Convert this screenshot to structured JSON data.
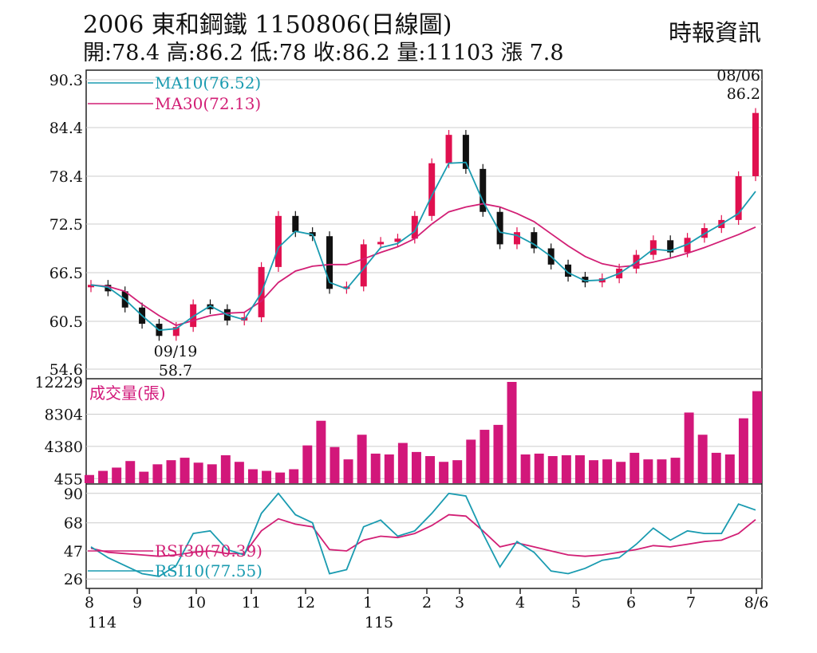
{
  "header": {
    "title": "2006 東和鋼鐵 1150806(日線圖)",
    "ohlc": "開:78.4 高:86.2 低:78 收:86.2 量:11103 漲 7.8",
    "source": "時報資訊"
  },
  "colors": {
    "up": "#e0104f",
    "down": "#111111",
    "ma10": "#1a9bb0",
    "ma30": "#d21f75",
    "volume": "#d2177a",
    "rsi10": "#1a9bb0",
    "rsi30": "#d21f75",
    "grid": "#cccccc"
  },
  "chart_data": [
    {
      "type": "candlestick",
      "title": "2006 東和鋼鐵 1150806(日線圖)",
      "y_ticks": [
        "90.3",
        "84.4",
        "78.4",
        "72.5",
        "66.5",
        "60.5",
        "54.6"
      ],
      "ylim": [
        54.6,
        90.3
      ],
      "x_ticks": [
        "8",
        "9",
        "10",
        "11",
        "12",
        "1",
        "2",
        "3",
        "4",
        "5",
        "6",
        "7",
        "8/6"
      ],
      "x_sub_ticks": [
        "114",
        "115"
      ],
      "legend": [
        {
          "label": "MA10(76.52)",
          "color": "#1a9bb0"
        },
        {
          "label": "MA30(72.13)",
          "color": "#d21f75"
        }
      ],
      "annotations": [
        {
          "label": "08/06",
          "value": "86.2",
          "position": "top-right"
        },
        {
          "label": "09/19",
          "value": "58.7",
          "position": "low"
        }
      ],
      "series": [
        {
          "name": "price",
          "x": [
            "08/01",
            "08/15",
            "08/29",
            "09/12",
            "09/19",
            "10/01",
            "10/15",
            "10/29",
            "11/12",
            "11/26",
            "12/05",
            "12/12",
            "12/19",
            "12/26",
            "01/05",
            "01/15",
            "01/26",
            "02/06",
            "02/16",
            "02/27",
            "03/06",
            "03/10",
            "03/16",
            "03/23",
            "03/30",
            "04/08",
            "04/17",
            "04/24",
            "05/06",
            "05/15",
            "05/26",
            "06/05",
            "06/15",
            "06/24",
            "07/02",
            "07/10",
            "07/20",
            "07/29",
            "08/04",
            "08/06"
          ],
          "values": [
            65.0,
            64.2,
            62.2,
            60.2,
            58.7,
            59.8,
            62.6,
            62.0,
            60.6,
            61.0,
            67.2,
            73.5,
            71.5,
            71.0,
            64.5,
            64.8,
            70.0,
            70.3,
            70.7,
            73.5,
            80.0,
            83.5,
            79.3,
            74.0,
            70.0,
            71.5,
            69.5,
            67.5,
            66.0,
            65.3,
            65.8,
            67.0,
            68.7,
            70.5,
            69.0,
            70.8,
            72.0,
            73.0,
            78.4,
            86.2
          ]
        },
        {
          "name": "MA10",
          "x": [
            "08/01",
            "08/15",
            "08/29",
            "09/12",
            "09/19",
            "10/01",
            "10/15",
            "10/29",
            "11/12",
            "11/26",
            "12/05",
            "12/12",
            "12/19",
            "12/26",
            "01/05",
            "01/15",
            "01/26",
            "02/06",
            "02/16",
            "02/27",
            "03/06",
            "03/10",
            "03/16",
            "03/23",
            "03/30",
            "04/08",
            "04/17",
            "04/24",
            "05/06",
            "05/15",
            "05/26",
            "06/05",
            "06/15",
            "06/24",
            "07/02",
            "07/10",
            "07/20",
            "07/29",
            "08/04",
            "08/06"
          ],
          "values": [
            65.0,
            64.7,
            63.2,
            61.2,
            59.4,
            59.6,
            61.1,
            62.4,
            61.3,
            60.7,
            64.0,
            69.6,
            71.6,
            71.2,
            65.3,
            64.5,
            67.0,
            69.6,
            70.1,
            71.6,
            76.0,
            80.0,
            80.1,
            75.3,
            71.5,
            71.1,
            70.0,
            68.5,
            66.5,
            65.5,
            65.6,
            66.4,
            67.8,
            69.4,
            69.2,
            70.0,
            71.3,
            72.5,
            73.8,
            76.52
          ]
        },
        {
          "name": "MA30",
          "x": [
            "08/01",
            "08/15",
            "08/29",
            "09/12",
            "09/19",
            "10/01",
            "10/15",
            "10/29",
            "11/12",
            "11/26",
            "12/05",
            "12/12",
            "12/19",
            "12/26",
            "01/05",
            "01/15",
            "01/26",
            "02/06",
            "02/16",
            "02/27",
            "03/06",
            "03/10",
            "03/16",
            "03/23",
            "03/30",
            "04/08",
            "04/17",
            "04/24",
            "05/06",
            "05/15",
            "05/26",
            "06/05",
            "06/15",
            "06/24",
            "07/02",
            "07/10",
            "07/20",
            "07/29",
            "08/04",
            "08/06"
          ],
          "values": [
            65.0,
            64.8,
            64.2,
            62.6,
            61.2,
            60.0,
            60.6,
            61.2,
            61.5,
            61.6,
            63.0,
            65.3,
            66.7,
            67.3,
            67.5,
            67.5,
            68.2,
            69.0,
            69.7,
            70.7,
            72.5,
            74.0,
            74.6,
            75.0,
            74.6,
            73.8,
            72.8,
            71.3,
            69.8,
            68.5,
            67.6,
            67.2,
            67.4,
            67.8,
            68.3,
            68.9,
            69.6,
            70.4,
            71.2,
            72.13
          ]
        }
      ]
    },
    {
      "type": "bar",
      "title": "成交量(張)",
      "y_ticks": [
        "12229",
        "8304",
        "4380",
        "455"
      ],
      "ylim": [
        0,
        12229
      ],
      "categories": [
        "08",
        "08",
        "08",
        "08",
        "09",
        "09",
        "09",
        "09",
        "10",
        "10",
        "10",
        "10",
        "11",
        "11",
        "11",
        "11",
        "12",
        "12",
        "12",
        "12",
        "01",
        "01",
        "01",
        "01",
        "02",
        "02",
        "02",
        "02",
        "03",
        "03",
        "03",
        "03",
        "04",
        "04",
        "04",
        "04",
        "05",
        "05",
        "05",
        "05",
        "06",
        "06",
        "06",
        "06",
        "07",
        "07",
        "07",
        "07",
        "08",
        "08/6"
      ],
      "values": [
        900,
        1400,
        1800,
        2600,
        1300,
        2200,
        2700,
        3000,
        2400,
        2200,
        3300,
        2500,
        1600,
        1400,
        1200,
        1600,
        4500,
        7500,
        4300,
        2800,
        5800,
        3500,
        3400,
        4800,
        3700,
        3200,
        2500,
        2700,
        5200,
        6400,
        7000,
        12229,
        3400,
        3500,
        3200,
        3300,
        3300,
        2700,
        2800,
        2500,
        3600,
        2800,
        2800,
        3000,
        8500,
        5800,
        3600,
        3400,
        7800,
        11103
      ]
    },
    {
      "type": "line",
      "title": "RSI",
      "y_ticks": [
        "90",
        "68",
        "47",
        "26"
      ],
      "ylim": [
        19,
        97
      ],
      "legend": [
        {
          "label": "RSI30(70.39)",
          "color": "#d21f75"
        },
        {
          "label": "RSI10(77.55)",
          "color": "#1a9bb0"
        }
      ],
      "series": [
        {
          "name": "RSI30",
          "x": [
            "08/01",
            "08/15",
            "08/29",
            "09/12",
            "09/19",
            "10/01",
            "10/15",
            "10/29",
            "11/12",
            "11/26",
            "12/05",
            "12/12",
            "12/19",
            "12/26",
            "01/05",
            "01/15",
            "01/26",
            "02/06",
            "02/16",
            "02/27",
            "03/06",
            "03/10",
            "03/16",
            "03/23",
            "03/30",
            "04/08",
            "04/17",
            "04/24",
            "05/06",
            "05/15",
            "05/26",
            "06/05",
            "06/15",
            "06/24",
            "07/02",
            "07/10",
            "07/20",
            "07/29",
            "08/04",
            "08/06"
          ],
          "values": [
            49,
            46,
            45,
            44,
            43,
            44,
            46,
            47,
            45,
            45,
            62,
            71,
            67,
            65,
            48,
            47,
            55,
            58,
            57,
            60,
            66,
            74,
            73,
            62,
            50,
            53,
            50,
            47,
            44,
            43,
            44,
            46,
            48,
            51,
            50,
            52,
            54,
            55,
            60,
            70.39
          ]
        },
        {
          "name": "RSI10",
          "x": [
            "08/01",
            "08/15",
            "08/29",
            "09/12",
            "09/19",
            "10/01",
            "10/15",
            "10/29",
            "11/12",
            "11/26",
            "12/05",
            "12/12",
            "12/19",
            "12/26",
            "01/05",
            "01/15",
            "01/26",
            "02/06",
            "02/16",
            "02/27",
            "03/06",
            "03/10",
            "03/16",
            "03/23",
            "03/30",
            "04/08",
            "04/17",
            "04/24",
            "05/06",
            "05/15",
            "05/26",
            "06/05",
            "06/15",
            "06/24",
            "07/02",
            "07/10",
            "07/20",
            "07/29",
            "08/04",
            "08/06"
          ],
          "values": [
            50,
            42,
            36,
            30,
            28,
            36,
            60,
            62,
            48,
            44,
            75,
            90,
            74,
            68,
            30,
            33,
            65,
            70,
            58,
            62,
            75,
            90,
            88,
            60,
            35,
            54,
            46,
            32,
            30,
            34,
            40,
            42,
            52,
            64,
            55,
            62,
            60,
            60,
            82,
            77.55
          ]
        }
      ]
    }
  ]
}
